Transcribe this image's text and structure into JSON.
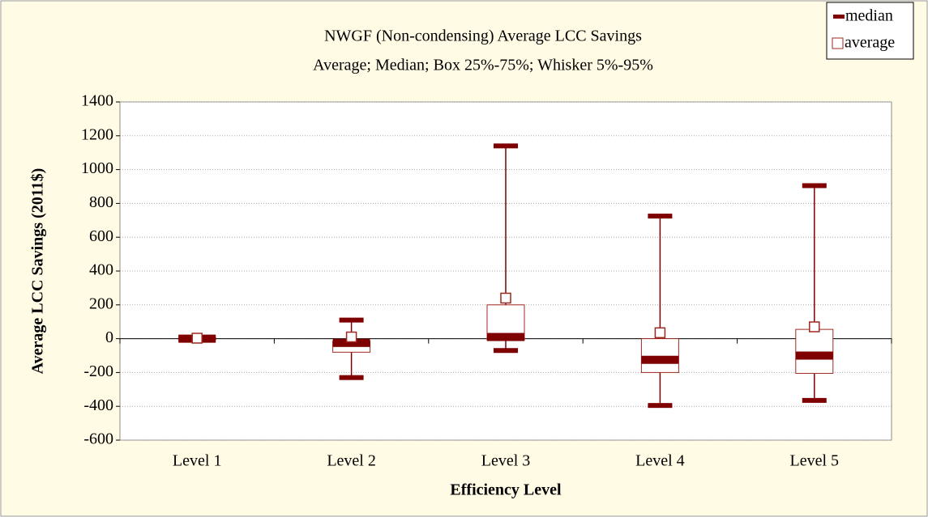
{
  "chart_data": {
    "type": "box",
    "title": "NWGF (Non-condensing) Average LCC Savings",
    "subtitle": "Average; Median; Box 25%-75%; Whisker 5%-95%",
    "x_label": "Efficiency Level",
    "y_label": "Average LCC Savings (2011$)",
    "categories": [
      "Level 1",
      "Level 2",
      "Level 3",
      "Level 4",
      "Level 5"
    ],
    "series": [
      {
        "name": "median",
        "color": "#7f0000"
      },
      {
        "name": "average",
        "color": "#a0281e"
      }
    ],
    "boxes": [
      {
        "p5": -5,
        "q1": -5,
        "median": 0,
        "q3": 5,
        "p95": 5,
        "mean": 3
      },
      {
        "p5": -230,
        "q1": -80,
        "median": -25,
        "q3": -15,
        "p95": 110,
        "mean": 10
      },
      {
        "p5": -70,
        "q1": -10,
        "median": 10,
        "q3": 200,
        "p95": 1140,
        "mean": 240
      },
      {
        "p5": -395,
        "q1": -200,
        "median": -125,
        "q3": 0,
        "p95": 725,
        "mean": 35
      },
      {
        "p5": -365,
        "q1": -205,
        "median": -100,
        "q3": 55,
        "p95": 905,
        "mean": 70
      }
    ],
    "ylim": [
      -600,
      1400
    ],
    "yticks": [
      -600,
      -400,
      -200,
      0,
      200,
      400,
      600,
      800,
      1000,
      1200,
      1400
    ],
    "grid": true
  }
}
